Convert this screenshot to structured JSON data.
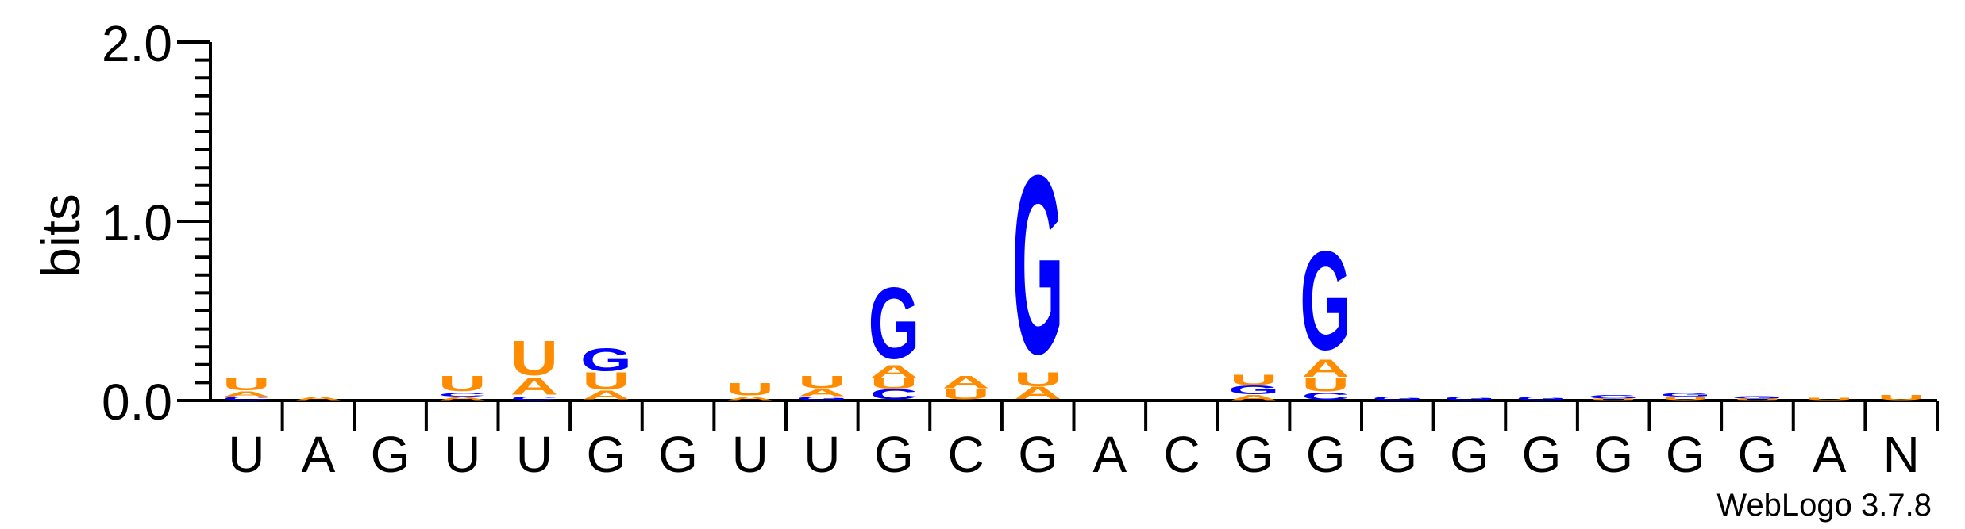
{
  "chart_data": {
    "type": "sequence-logo",
    "ylabel": "bits",
    "ylim": [
      0,
      2.0
    ],
    "yticks": [
      "0.0",
      "1.0",
      "2.0"
    ],
    "credit": "WebLogo 3.7.8",
    "colors": {
      "G": "#0000ff",
      "U": "#ff8c00",
      "A": "#ff8c00",
      "C": "#0000ff"
    },
    "x_labels": [
      "U",
      "A",
      "G",
      "U",
      "U",
      "G",
      "G",
      "U",
      "U",
      "G",
      "C",
      "G",
      "A",
      "C",
      "G",
      "G",
      "G",
      "G",
      "G",
      "G",
      "G",
      "G",
      "A",
      "N"
    ],
    "stacks": [
      [
        {
          "letter": "U",
          "value": 0.07
        },
        {
          "letter": "A",
          "value": 0.03
        },
        {
          "letter": "C",
          "value": 0.02
        }
      ],
      [
        {
          "letter": "A",
          "value": 0.02
        }
      ],
      [],
      [
        {
          "letter": "U",
          "value": 0.09
        },
        {
          "letter": "A",
          "value": 0.02
        },
        {
          "letter": "C",
          "value": 0.02
        }
      ],
      [
        {
          "letter": "U",
          "value": 0.2
        },
        {
          "letter": "A",
          "value": 0.1
        },
        {
          "letter": "C",
          "value": 0.02
        }
      ],
      [
        {
          "letter": "G",
          "value": 0.13
        },
        {
          "letter": "U",
          "value": 0.1
        },
        {
          "letter": "A",
          "value": 0.05
        }
      ],
      [],
      [
        {
          "letter": "U",
          "value": 0.07
        },
        {
          "letter": "A",
          "value": 0.02
        }
      ],
      [
        {
          "letter": "U",
          "value": 0.07
        },
        {
          "letter": "A",
          "value": 0.04
        },
        {
          "letter": "G",
          "value": 0.02
        }
      ],
      [
        {
          "letter": "G",
          "value": 0.41
        },
        {
          "letter": "A",
          "value": 0.07
        },
        {
          "letter": "C",
          "value": 0.06
        },
        {
          "letter": "U",
          "value": 0.06
        }
      ],
      [
        {
          "letter": "U",
          "value": 0.06
        },
        {
          "letter": "A",
          "value": 0.07
        }
      ],
      [
        {
          "letter": "G",
          "value": 1.03
        },
        {
          "letter": "U",
          "value": 0.08
        },
        {
          "letter": "A",
          "value": 0.07
        }
      ],
      [],
      [],
      [
        {
          "letter": "G",
          "value": 0.05
        },
        {
          "letter": "U",
          "value": 0.06
        },
        {
          "letter": "A",
          "value": 0.03
        }
      ],
      [
        {
          "letter": "G",
          "value": 0.57
        },
        {
          "letter": "A",
          "value": 0.1
        },
        {
          "letter": "U",
          "value": 0.08
        },
        {
          "letter": "C",
          "value": 0.04
        }
      ],
      [
        {
          "letter": "G",
          "value": 0.02
        }
      ],
      [
        {
          "letter": "G",
          "value": 0.02
        }
      ],
      [
        {
          "letter": "G",
          "value": 0.02
        }
      ],
      [
        {
          "letter": "G",
          "value": 0.02
        },
        {
          "letter": "U",
          "value": 0.01
        }
      ],
      [
        {
          "letter": "U",
          "value": 0.02
        },
        {
          "letter": "G",
          "value": 0.02
        }
      ],
      [
        {
          "letter": "G",
          "value": 0.015
        },
        {
          "letter": "U",
          "value": 0.01
        }
      ],
      [
        {
          "letter": "U",
          "value": 0.015
        }
      ],
      [
        {
          "letter": "U",
          "value": 0.03
        }
      ]
    ]
  }
}
